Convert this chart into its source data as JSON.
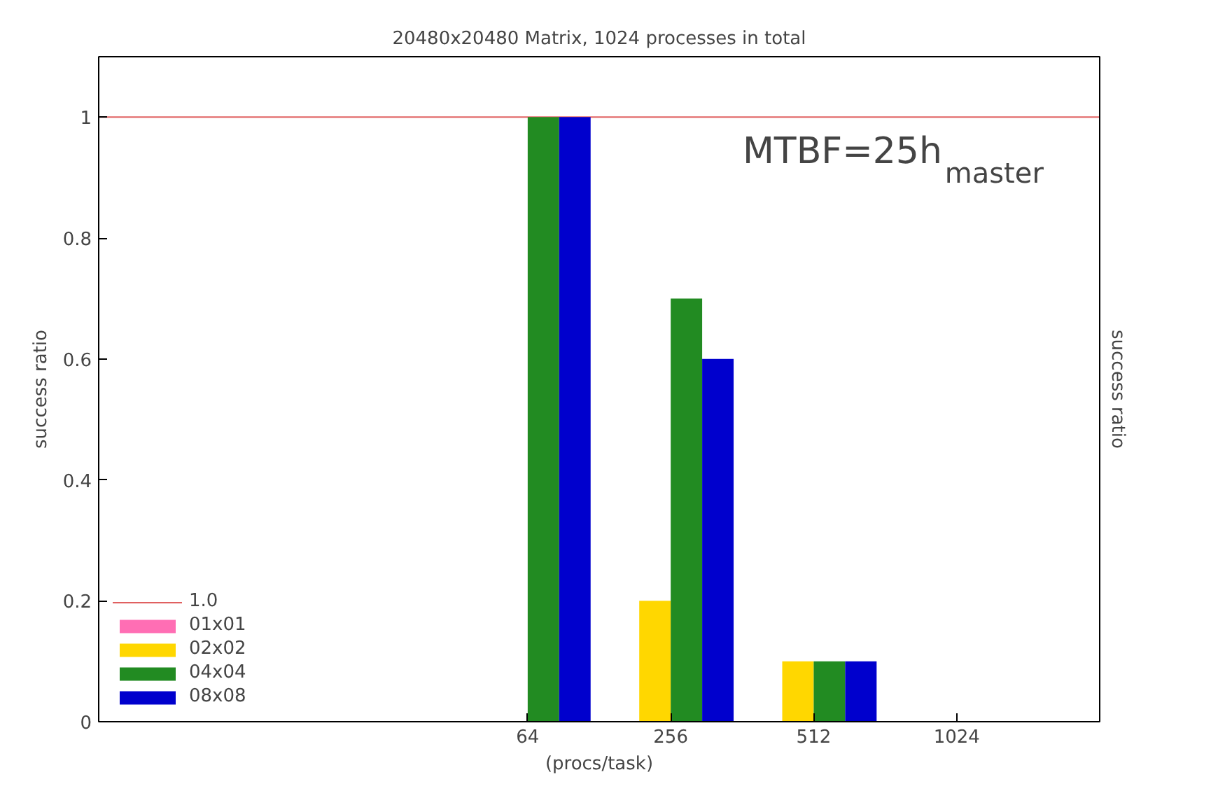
{
  "chart_data": {
    "type": "bar",
    "title": "20480x20480 Matrix, 1024 processes in total",
    "xlabel": "(procs/task)",
    "ylabel": "success ratio",
    "y2label": "success ratio",
    "categories": [
      null,
      null,
      "64",
      "256",
      "512",
      "1024"
    ],
    "series": [
      {
        "name": "01x01",
        "color": "#ff6eb4",
        "values": [
          null,
          null,
          0,
          0,
          0,
          0
        ]
      },
      {
        "name": "02x02",
        "color": "#ffd700",
        "values": [
          null,
          null,
          0,
          0.2,
          0.1,
          0
        ]
      },
      {
        "name": "04x04",
        "color": "#228b22",
        "values": [
          null,
          null,
          1,
          0.7,
          0.1,
          0
        ]
      },
      {
        "name": "08x08",
        "color": "#0000cd",
        "values": [
          null,
          null,
          1,
          0.6,
          0.1,
          0
        ]
      }
    ],
    "ylim": [
      0,
      1.1
    ],
    "yticks": [
      0,
      0.2,
      0.4,
      0.6,
      0.8,
      1
    ],
    "ref_lines": [
      {
        "axis": "y",
        "value": 1,
        "label": "1.0",
        "color": "#e06060"
      }
    ],
    "annotations": [
      "MTBF=25h$_{master}$"
    ],
    "grid": false,
    "legend": "bottom left"
  }
}
